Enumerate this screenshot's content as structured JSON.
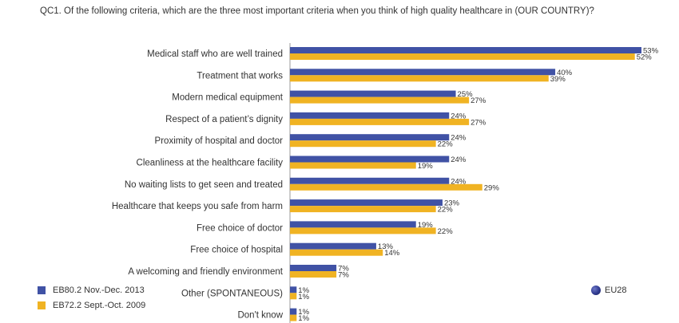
{
  "question": "QC1. Of the following criteria, which are the three most important criteria when you think of high quality healthcare in (OUR COUNTRY)?",
  "colors": {
    "series1": "#4052a5",
    "series2": "#f0b323"
  },
  "legend": {
    "item1": "EB80.2 Nov.-Dec. 2013",
    "item2": "EB72.2 Sept.-Oct. 2009"
  },
  "badge": {
    "label": "EU28",
    "icon": "globe-icon"
  },
  "chart_data": {
    "type": "bar",
    "orientation": "horizontal",
    "title": "",
    "xlabel": "",
    "ylabel": "",
    "xlim": [
      0,
      53
    ],
    "value_suffix": "%",
    "categories": [
      "Medical staff who are well trained",
      "Treatment that works",
      "Modern medical equipment",
      "Respect of a patient’s dignity",
      "Proximity of hospital and doctor",
      "Cleanliness at the healthcare facility",
      "No waiting lists to get seen and treated",
      "Healthcare that keeps you safe from harm",
      "Free choice of doctor",
      "Free choice of hospital",
      "A welcoming and friendly environment",
      "Other (SPONTANEOUS)",
      "Don't know"
    ],
    "series": [
      {
        "name": "EB80.2 Nov.-Dec. 2013",
        "values": [
          53,
          40,
          25,
          24,
          24,
          24,
          24,
          23,
          19,
          13,
          7,
          1,
          1
        ]
      },
      {
        "name": "EB72.2 Sept.-Oct. 2009",
        "values": [
          52,
          39,
          27,
          27,
          22,
          19,
          29,
          22,
          22,
          14,
          7,
          1,
          1
        ]
      }
    ],
    "grid": false,
    "legend_position": "bottom-left"
  }
}
